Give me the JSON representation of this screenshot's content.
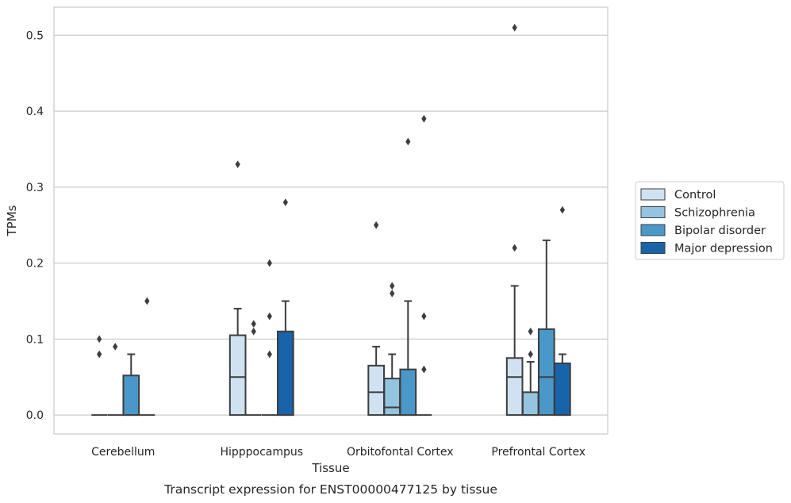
{
  "caption": "Transcript expression for ENST00000477125 by tissue",
  "chart_data": {
    "type": "box",
    "title": "",
    "xlabel": "Tissue",
    "ylabel": "TPMs",
    "ylim": [
      -0.025,
      0.537
    ],
    "yticks": [
      0.0,
      0.1,
      0.2,
      0.3,
      0.4,
      0.5
    ],
    "ytick_labels": [
      "0.0",
      "0.1",
      "0.2",
      "0.3",
      "0.4",
      "0.5"
    ],
    "grid": "horizontal",
    "legend_position": "right-center",
    "categories": [
      "Cerebellum",
      "Hipppocampus",
      "Orbitofontal Cortex",
      "Prefrontal Cortex"
    ],
    "series": [
      {
        "name": "Control",
        "color": "#d0e1f2",
        "boxes": [
          {
            "q1": 0,
            "median": 0,
            "q3": 0,
            "whisker_low": 0,
            "whisker_high": 0,
            "outliers": [
              0.1,
              0.08
            ]
          },
          {
            "q1": 0,
            "median": 0.05,
            "q3": 0.105,
            "whisker_low": 0,
            "whisker_high": 0.14,
            "outliers": [
              0.33
            ]
          },
          {
            "q1": 0,
            "median": 0.03,
            "q3": 0.065,
            "whisker_low": 0,
            "whisker_high": 0.09,
            "outliers": [
              0.25
            ]
          },
          {
            "q1": 0,
            "median": 0.05,
            "q3": 0.075,
            "whisker_low": 0,
            "whisker_high": 0.17,
            "outliers": [
              0.51,
              0.22
            ]
          }
        ]
      },
      {
        "name": "Schizophrenia",
        "color": "#94c4df",
        "boxes": [
          {
            "q1": 0,
            "median": 0,
            "q3": 0,
            "whisker_low": 0,
            "whisker_high": 0,
            "outliers": [
              0.09
            ]
          },
          {
            "q1": 0,
            "median": 0,
            "q3": 0,
            "whisker_low": 0,
            "whisker_high": 0,
            "outliers": [
              0.12,
              0.11
            ]
          },
          {
            "q1": 0,
            "median": 0.01,
            "q3": 0.048,
            "whisker_low": 0,
            "whisker_high": 0.08,
            "outliers": [
              0.17,
              0.16
            ]
          },
          {
            "q1": 0,
            "median": 0,
            "q3": 0.03,
            "whisker_low": 0,
            "whisker_high": 0.07,
            "outliers": [
              0.11,
              0.08
            ]
          }
        ]
      },
      {
        "name": "Bipolar disorder",
        "color": "#4a98c9",
        "boxes": [
          {
            "q1": 0,
            "median": 0,
            "q3": 0.052,
            "whisker_low": 0,
            "whisker_high": 0.08,
            "outliers": []
          },
          {
            "q1": 0,
            "median": 0,
            "q3": 0,
            "whisker_low": 0,
            "whisker_high": 0,
            "outliers": [
              0.2,
              0.13,
              0.08
            ]
          },
          {
            "q1": 0,
            "median": 0,
            "q3": 0.06,
            "whisker_low": 0,
            "whisker_high": 0.15,
            "outliers": [
              0.36
            ]
          },
          {
            "q1": 0,
            "median": 0.05,
            "q3": 0.113,
            "whisker_low": 0,
            "whisker_high": 0.23,
            "outliers": []
          }
        ]
      },
      {
        "name": "Major depression",
        "color": "#1764ab",
        "boxes": [
          {
            "q1": 0,
            "median": 0,
            "q3": 0,
            "whisker_low": 0,
            "whisker_high": 0,
            "outliers": [
              0.15
            ]
          },
          {
            "q1": 0,
            "median": 0,
            "q3": 0.11,
            "whisker_low": 0,
            "whisker_high": 0.15,
            "outliers": [
              0.28
            ]
          },
          {
            "q1": 0,
            "median": 0,
            "q3": 0,
            "whisker_low": 0,
            "whisker_high": 0,
            "outliers": [
              0.39,
              0.13,
              0.06
            ]
          },
          {
            "q1": 0,
            "median": 0,
            "q3": 0.068,
            "whisker_low": 0,
            "whisker_high": 0.08,
            "outliers": [
              0.27
            ]
          }
        ]
      }
    ]
  }
}
